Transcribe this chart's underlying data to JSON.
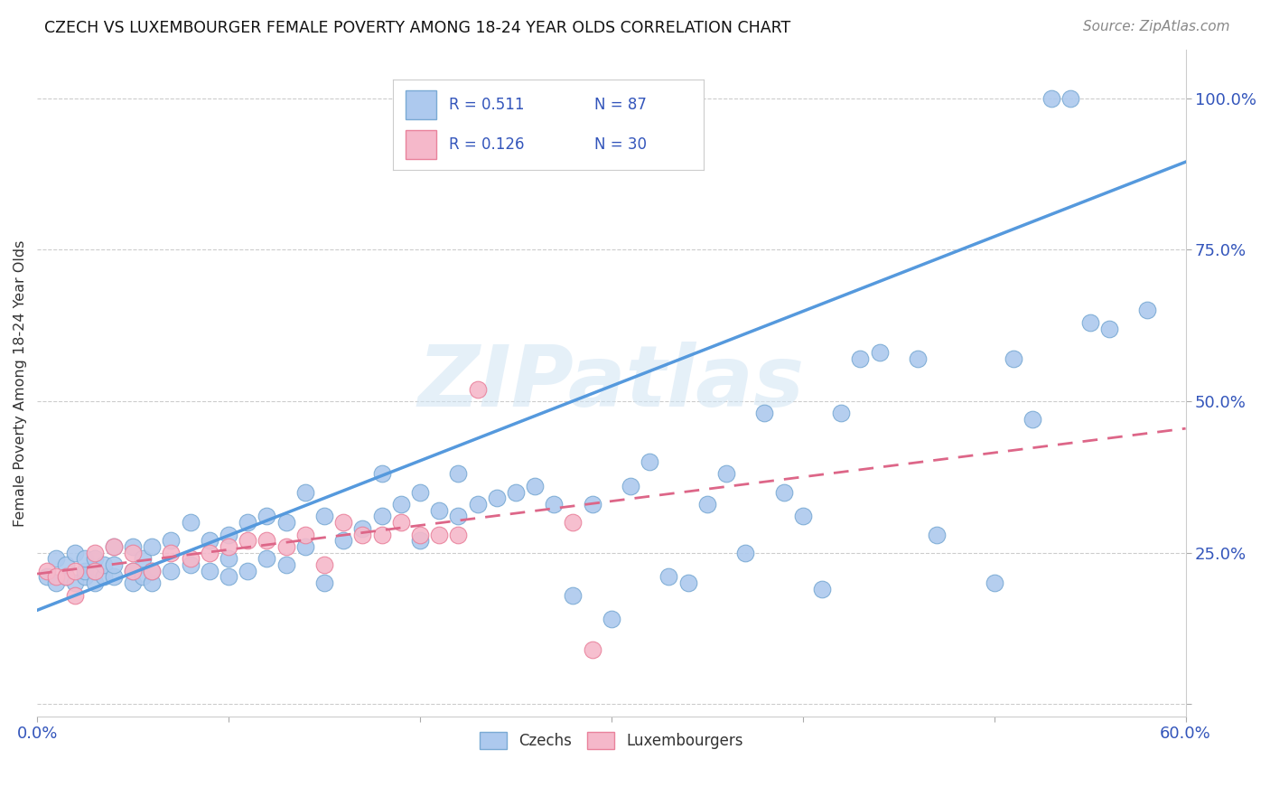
{
  "title": "CZECH VS LUXEMBOURGER FEMALE POVERTY AMONG 18-24 YEAR OLDS CORRELATION CHART",
  "source": "Source: ZipAtlas.com",
  "ylabel": "Female Poverty Among 18-24 Year Olds",
  "xlim": [
    0.0,
    0.6
  ],
  "ylim": [
    -0.02,
    1.08
  ],
  "yticks": [
    0.0,
    0.25,
    0.5,
    0.75,
    1.0
  ],
  "ytick_labels": [
    "",
    "25.0%",
    "50.0%",
    "75.0%",
    "100.0%"
  ],
  "xticks": [
    0.0,
    0.1,
    0.2,
    0.3,
    0.4,
    0.5,
    0.6
  ],
  "xtick_labels": [
    "0.0%",
    "",
    "",
    "",
    "",
    "",
    "60.0%"
  ],
  "czech_color": "#adc9ee",
  "lux_color": "#f5b8ca",
  "czech_edge": "#7aaad4",
  "lux_edge": "#e9829c",
  "trend_czech_color": "#5599dd",
  "trend_lux_color": "#dd6688",
  "legend_color": "#3355bb",
  "watermark": "ZIPatlas",
  "czech_trend_x0": 0.0,
  "czech_trend_y0": 0.155,
  "czech_trend_x1": 0.6,
  "czech_trend_y1": 0.895,
  "lux_trend_x0": 0.0,
  "lux_trend_y0": 0.215,
  "lux_trend_x1": 0.6,
  "lux_trend_y1": 0.455,
  "czech_x": [
    0.005,
    0.01,
    0.01,
    0.015,
    0.015,
    0.02,
    0.02,
    0.025,
    0.025,
    0.025,
    0.03,
    0.03,
    0.03,
    0.035,
    0.035,
    0.04,
    0.04,
    0.04,
    0.05,
    0.05,
    0.05,
    0.055,
    0.055,
    0.06,
    0.06,
    0.06,
    0.07,
    0.07,
    0.08,
    0.08,
    0.09,
    0.09,
    0.1,
    0.1,
    0.1,
    0.11,
    0.11,
    0.12,
    0.12,
    0.13,
    0.13,
    0.14,
    0.14,
    0.15,
    0.15,
    0.16,
    0.17,
    0.18,
    0.18,
    0.19,
    0.2,
    0.2,
    0.21,
    0.22,
    0.22,
    0.23,
    0.24,
    0.25,
    0.26,
    0.27,
    0.28,
    0.29,
    0.3,
    0.31,
    0.32,
    0.33,
    0.34,
    0.35,
    0.36,
    0.37,
    0.38,
    0.39,
    0.4,
    0.41,
    0.42,
    0.43,
    0.44,
    0.46,
    0.47,
    0.5,
    0.51,
    0.52,
    0.53,
    0.54,
    0.55,
    0.56,
    0.58
  ],
  "czech_y": [
    0.21,
    0.2,
    0.24,
    0.21,
    0.23,
    0.2,
    0.25,
    0.21,
    0.22,
    0.24,
    0.2,
    0.22,
    0.24,
    0.21,
    0.23,
    0.21,
    0.23,
    0.26,
    0.2,
    0.22,
    0.26,
    0.21,
    0.24,
    0.2,
    0.22,
    0.26,
    0.22,
    0.27,
    0.23,
    0.3,
    0.22,
    0.27,
    0.21,
    0.24,
    0.28,
    0.22,
    0.3,
    0.24,
    0.31,
    0.23,
    0.3,
    0.26,
    0.35,
    0.2,
    0.31,
    0.27,
    0.29,
    0.31,
    0.38,
    0.33,
    0.27,
    0.35,
    0.32,
    0.31,
    0.38,
    0.33,
    0.34,
    0.35,
    0.36,
    0.33,
    0.18,
    0.33,
    0.14,
    0.36,
    0.4,
    0.21,
    0.2,
    0.33,
    0.38,
    0.25,
    0.48,
    0.35,
    0.31,
    0.19,
    0.48,
    0.57,
    0.58,
    0.57,
    0.28,
    0.2,
    0.57,
    0.47,
    1.0,
    1.0,
    0.63,
    0.62,
    0.65
  ],
  "lux_x": [
    0.005,
    0.01,
    0.015,
    0.02,
    0.02,
    0.03,
    0.03,
    0.04,
    0.05,
    0.05,
    0.06,
    0.07,
    0.08,
    0.09,
    0.1,
    0.11,
    0.12,
    0.13,
    0.14,
    0.15,
    0.16,
    0.17,
    0.18,
    0.19,
    0.2,
    0.21,
    0.22,
    0.23,
    0.28,
    0.29
  ],
  "lux_y": [
    0.22,
    0.21,
    0.21,
    0.18,
    0.22,
    0.22,
    0.25,
    0.26,
    0.22,
    0.25,
    0.22,
    0.25,
    0.24,
    0.25,
    0.26,
    0.27,
    0.27,
    0.26,
    0.28,
    0.23,
    0.3,
    0.28,
    0.28,
    0.3,
    0.28,
    0.28,
    0.28,
    0.52,
    0.3,
    0.09
  ],
  "background_color": "#ffffff",
  "grid_color": "#cccccc"
}
